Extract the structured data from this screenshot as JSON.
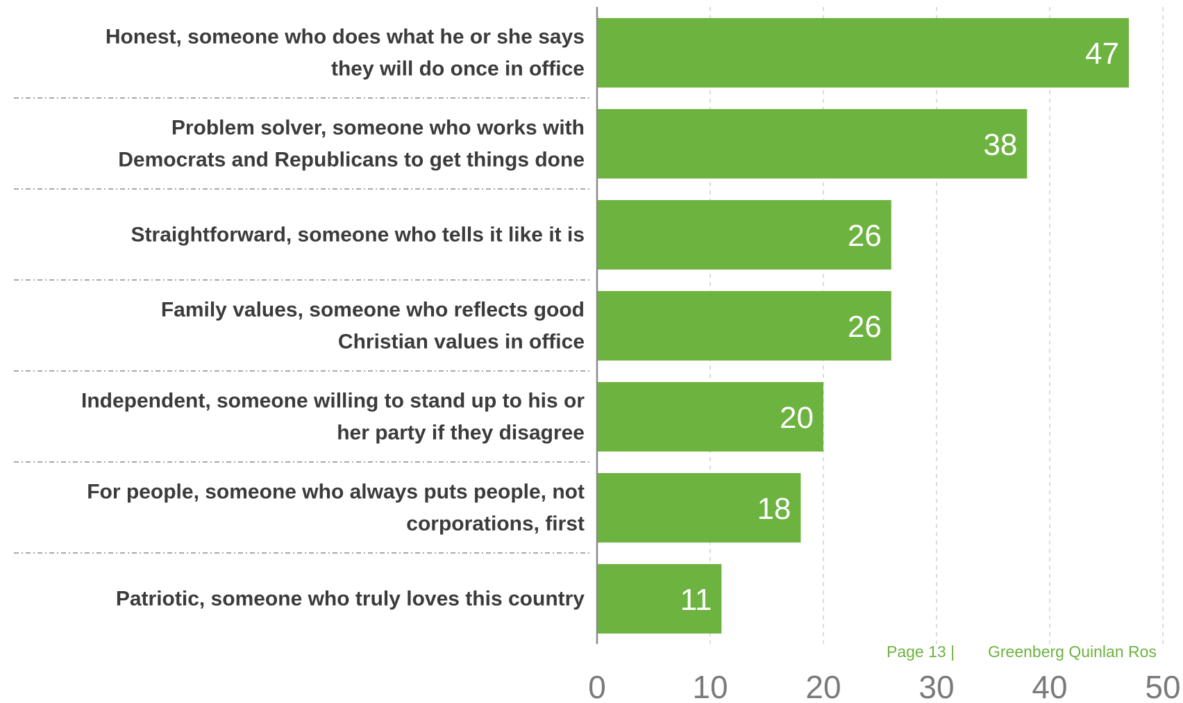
{
  "chart_data": {
    "type": "bar",
    "orientation": "horizontal",
    "title": "",
    "xlabel": "",
    "ylabel": "",
    "xlim": [
      0,
      50
    ],
    "x_ticks": [
      0,
      10,
      20,
      30,
      40,
      50
    ],
    "grid": "vertical dashed",
    "categories": [
      [
        "Honest, someone who does what he or she says",
        "they will do once in office"
      ],
      [
        "Problem solver, someone who works with",
        "Democrats and Republicans to get things done"
      ],
      [
        "Straightforward, someone who tells it like it is"
      ],
      [
        "Family values, someone who reflects good",
        "Christian values in office"
      ],
      [
        "Independent, someone willing to stand up to his or",
        "her party if they disagree"
      ],
      [
        "For people, someone who always puts people, not",
        "corporations, first"
      ],
      [
        "Patriotic, someone who truly loves this country"
      ]
    ],
    "values": [
      47,
      38,
      26,
      26,
      20,
      18,
      11
    ],
    "bar_color": "#6db33f"
  },
  "footer": {
    "page_label": "Page 13 |",
    "org": "Greenberg Quinlan Ros"
  }
}
